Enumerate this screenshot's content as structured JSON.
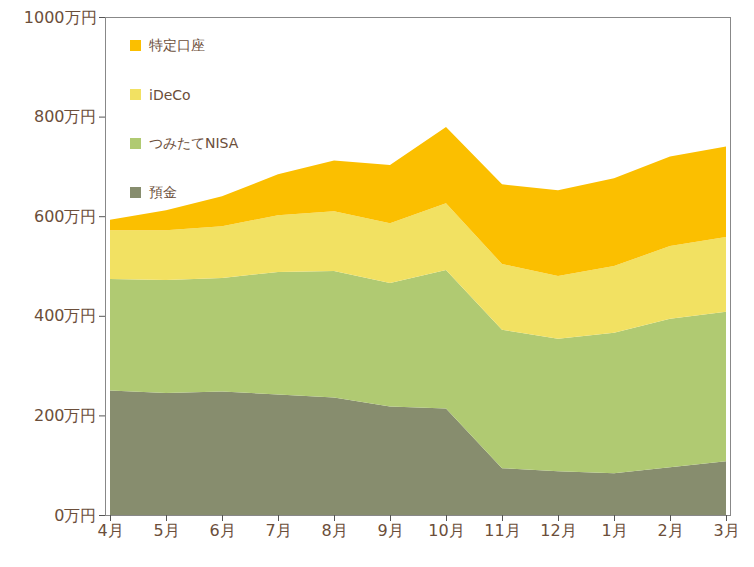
{
  "chart_data": {
    "type": "area",
    "stacked": true,
    "categories": [
      "4月",
      "5月",
      "6月",
      "7月",
      "8月",
      "9月",
      "10月",
      "11月",
      "12月",
      "1月",
      "2月",
      "3月"
    ],
    "series": [
      {
        "name": "預金",
        "color": "#878d6e",
        "values": [
          250,
          245,
          248,
          242,
          236,
          218,
          214,
          94,
          88,
          84,
          96,
          108
        ]
      },
      {
        "name": "つみたてNISA",
        "color": "#b0ca72",
        "values": [
          224,
          227,
          228,
          246,
          254,
          248,
          278,
          278,
          266,
          282,
          298,
          300
        ]
      },
      {
        "name": "iDeCo",
        "color": "#f2e162",
        "values": [
          98,
          100,
          104,
          114,
          120,
          120,
          134,
          132,
          126,
          134,
          146,
          150
        ]
      },
      {
        "name": "特定口座",
        "color": "#fbbf00",
        "values": [
          21,
          40,
          60,
          82,
          102,
          117,
          153,
          160,
          172,
          176,
          180,
          182
        ]
      }
    ],
    "ylim": [
      0,
      1000
    ],
    "yticks": [
      {
        "value": 0,
        "label": "0万円"
      },
      {
        "value": 200,
        "label": "200万円"
      },
      {
        "value": 400,
        "label": "400万円"
      },
      {
        "value": 600,
        "label": "600万円"
      },
      {
        "value": 800,
        "label": "800万円"
      },
      {
        "value": 1000,
        "label": "1000万円"
      }
    ],
    "legend": "top-left",
    "grid": false
  }
}
